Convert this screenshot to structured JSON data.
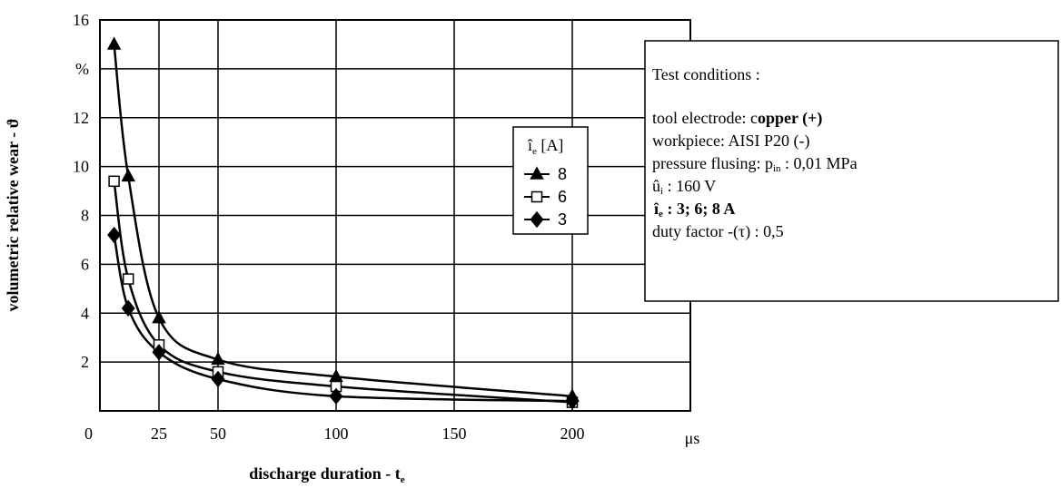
{
  "chart_data": {
    "type": "line",
    "x_label": "discharge duration  - t",
    "x_label_sub": "e",
    "x_unit": "μs",
    "y_label": "volumetric relative wear - ϑ",
    "xlim": [
      0,
      250
    ],
    "xticks": [
      0,
      25,
      50,
      100,
      150,
      200
    ],
    "ylim": [
      0,
      16
    ],
    "yticks": [
      2,
      4,
      6,
      8,
      10,
      12,
      {
        "value": 14,
        "label": "%"
      },
      16
    ],
    "grid": true,
    "x": [
      6,
      12,
      25,
      50,
      100,
      200
    ],
    "legend_title": "î",
    "legend_title_sub": "e",
    "legend_title_unit": " [A]",
    "series": [
      {
        "name": "8",
        "color": "#000000",
        "marker": "triangle",
        "values": [
          15,
          9.6,
          3.8,
          2.1,
          1.4,
          0.6
        ]
      },
      {
        "name": "6",
        "color": "#000000",
        "marker": "square",
        "values": [
          9.4,
          5.4,
          2.7,
          1.6,
          1.0,
          0.35
        ]
      },
      {
        "name": "3",
        "color": "#000000",
        "marker": "diamond",
        "values": [
          7.2,
          4.2,
          2.4,
          1.3,
          0.6,
          0.4
        ]
      }
    ],
    "notes": {
      "heading": "Test conditions :",
      "tool_a": "tool electrode: c",
      "tool_b": "opper (+)",
      "workpiece": "workpiece:  AISI P20 (-)",
      "flush_a": "pressure flusing:  p",
      "flush_sub": "in",
      "flush_b": " : 0,01 MPa",
      "volt_a": "û",
      "volt_sub": "i",
      "volt_b": " : 160 V",
      "cur_a": "î",
      "cur_sub": "e",
      "cur_b": " : 3; 6; 8 A",
      "duty": "duty factor -(τ)  : 0,5"
    }
  }
}
